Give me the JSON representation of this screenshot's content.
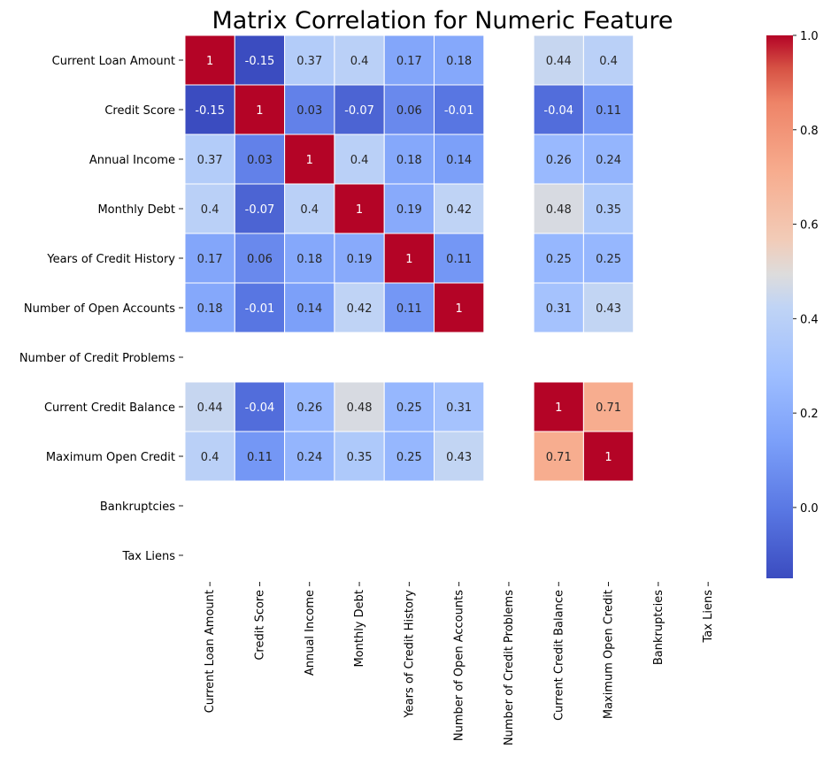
{
  "chart_data": {
    "type": "heatmap",
    "title": "Matrix Correlation for Numeric Feature",
    "xlabel": "",
    "ylabel": "",
    "rows": [
      "Current Loan Amount",
      "Credit Score",
      "Annual Income",
      "Monthly Debt",
      "Years of Credit History",
      "Number of Open Accounts",
      "Number of Credit Problems",
      "Current Credit Balance",
      "Maximum Open Credit",
      "Bankruptcies",
      "Tax Liens"
    ],
    "columns": [
      "Current Loan Amount",
      "Credit Score",
      "Annual Income",
      "Monthly Debt",
      "Years of Credit History",
      "Number of Open Accounts",
      "Number of Credit Problems",
      "Current Credit Balance",
      "Maximum Open Credit",
      "Bankruptcies",
      "Tax Liens"
    ],
    "values": [
      [
        1,
        -0.15,
        0.37,
        0.4,
        0.17,
        0.18,
        null,
        0.44,
        0.4,
        null,
        null
      ],
      [
        -0.15,
        1,
        0.03,
        -0.07,
        0.06,
        -0.01,
        null,
        -0.04,
        0.11,
        null,
        null
      ],
      [
        0.37,
        0.03,
        1,
        0.4,
        0.18,
        0.14,
        null,
        0.26,
        0.24,
        null,
        null
      ],
      [
        0.4,
        -0.07,
        0.4,
        1,
        0.19,
        0.42,
        null,
        0.48,
        0.35,
        null,
        null
      ],
      [
        0.17,
        0.06,
        0.18,
        0.19,
        1,
        0.11,
        null,
        0.25,
        0.25,
        null,
        null
      ],
      [
        0.18,
        -0.01,
        0.14,
        0.42,
        0.11,
        1,
        null,
        0.31,
        0.43,
        null,
        null
      ],
      [
        null,
        null,
        null,
        null,
        null,
        null,
        null,
        null,
        null,
        null,
        null
      ],
      [
        0.44,
        -0.04,
        0.26,
        0.48,
        0.25,
        0.31,
        null,
        1,
        0.71,
        null,
        null
      ],
      [
        0.4,
        0.11,
        0.24,
        0.35,
        0.25,
        0.43,
        null,
        0.71,
        1,
        null,
        null
      ],
      [
        null,
        null,
        null,
        null,
        null,
        null,
        null,
        null,
        null,
        null,
        null
      ],
      [
        null,
        null,
        null,
        null,
        null,
        null,
        null,
        null,
        null,
        null,
        null
      ]
    ],
    "colormap": "coolwarm",
    "colorbar": {
      "range": [
        -0.15,
        1.0
      ],
      "ticks": [
        0.0,
        0.2,
        0.4,
        0.6,
        0.8,
        1.0
      ],
      "tick_labels": [
        "0.0",
        "0.2",
        "0.4",
        "0.6",
        "0.8",
        "1.0"
      ]
    },
    "missing_cells": "blank",
    "annotated": true
  },
  "colors": {
    "low": "#3b4cc0",
    "mid": "#dddddd",
    "high": "#b40426",
    "cell_border": "#ffffff"
  }
}
